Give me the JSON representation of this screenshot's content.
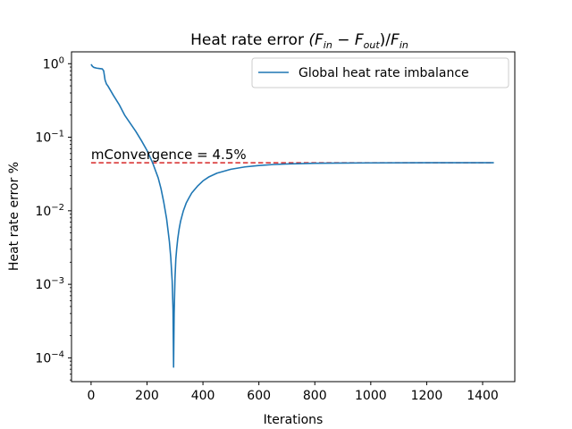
{
  "chart_data": {
    "type": "line",
    "title_prefix": "Heat rate error ",
    "title_formula": "(F_in − F_out)/F_in",
    "title_parts": {
      "open": "(",
      "f1": "F",
      "sub1": "in",
      "minus": " − ",
      "f2": "F",
      "sub2": "out",
      "close": ")/",
      "f3": "F",
      "sub3": "in"
    },
    "xlabel": "Iterations",
    "ylabel": "Heat rate error %",
    "xlim": [
      -70,
      1515
    ],
    "ylim": [
      4.75e-05,
      1.45
    ],
    "yscale": "log",
    "x_ticks": [
      0,
      200,
      400,
      600,
      800,
      1000,
      1200,
      1400
    ],
    "x_tick_labels": [
      "0",
      "200",
      "400",
      "600",
      "800",
      "1000",
      "1200",
      "1400"
    ],
    "y_ticks": [
      1,
      0.1,
      0.01,
      0.001,
      0.0001
    ],
    "y_tick_labels": [
      {
        "base": "10",
        "exp": "0"
      },
      {
        "base": "10",
        "exp": "−1"
      },
      {
        "base": "10",
        "exp": "−2"
      },
      {
        "base": "10",
        "exp": "−3"
      },
      {
        "base": "10",
        "exp": "−4"
      }
    ],
    "grid": false,
    "legend_position": "upper right",
    "series": [
      {
        "name": "Global heat rate imbalance",
        "color": "#1f77b4",
        "x": [
          0,
          5,
          10,
          20,
          30,
          40,
          45,
          50,
          55,
          60,
          70,
          80,
          100,
          120,
          140,
          160,
          180,
          200,
          220,
          240,
          250,
          260,
          270,
          280,
          285,
          290,
          293,
          295,
          297,
          300,
          303,
          306,
          310,
          315,
          320,
          330,
          340,
          350,
          360,
          380,
          400,
          420,
          450,
          500,
          550,
          600,
          650,
          700,
          800,
          900,
          1000,
          1200,
          1440
        ],
        "y": [
          0.98,
          0.92,
          0.89,
          0.87,
          0.86,
          0.85,
          0.8,
          0.6,
          0.53,
          0.5,
          0.43,
          0.37,
          0.28,
          0.2,
          0.155,
          0.12,
          0.09,
          0.066,
          0.045,
          0.028,
          0.02,
          0.013,
          0.0078,
          0.0038,
          0.0023,
          0.0011,
          0.00045,
          7.5e-05,
          0.0004,
          0.0012,
          0.0022,
          0.003,
          0.0042,
          0.0057,
          0.0072,
          0.01,
          0.0127,
          0.015,
          0.0175,
          0.0215,
          0.0255,
          0.0287,
          0.0325,
          0.0367,
          0.0395,
          0.0413,
          0.0425,
          0.0433,
          0.0442,
          0.0446,
          0.0448,
          0.045,
          0.045
        ]
      }
    ],
    "reference_line": {
      "y": 0.045,
      "x_range": [
        0,
        1440
      ],
      "color": "#d62728",
      "style": "dashed"
    },
    "annotation": {
      "text": "mConvergence = 4.5%",
      "x": 0,
      "y": 0.045
    }
  }
}
